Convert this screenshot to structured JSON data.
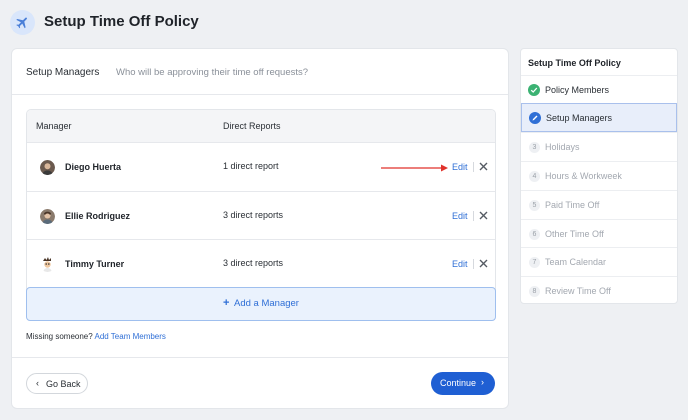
{
  "header": {
    "title": "Setup Time Off Policy",
    "icon": "airplane-icon"
  },
  "card": {
    "title": "Setup Managers",
    "subtitle": "Who will be approving their time off requests?",
    "table": {
      "columns": [
        "Manager",
        "Direct Reports"
      ],
      "rows": [
        {
          "name": "Diego Huerta",
          "reports": "1 direct report",
          "edit_label": "Edit"
        },
        {
          "name": "Ellie Rodriguez",
          "reports": "3 direct reports",
          "edit_label": "Edit"
        },
        {
          "name": "Timmy Turner",
          "reports": "3 direct reports",
          "edit_label": "Edit"
        }
      ]
    },
    "add_manager_label": "Add a Manager",
    "missing_text": "Missing someone?",
    "missing_link": "Add Team Members",
    "back_label": "Go Back",
    "continue_label": "Continue"
  },
  "sidebar": {
    "title": "Setup Time Off Policy",
    "items": [
      {
        "num": "",
        "label": "Policy Members",
        "state": "done"
      },
      {
        "num": "",
        "label": "Setup Managers",
        "state": "active"
      },
      {
        "num": "3",
        "label": "Holidays",
        "state": "future"
      },
      {
        "num": "4",
        "label": "Hours & Workweek",
        "state": "future"
      },
      {
        "num": "5",
        "label": "Paid Time Off",
        "state": "future"
      },
      {
        "num": "6",
        "label": "Other Time Off",
        "state": "future"
      },
      {
        "num": "7",
        "label": "Team Calendar",
        "state": "future"
      },
      {
        "num": "8",
        "label": "Review Time Off",
        "state": "future"
      }
    ]
  },
  "colors": {
    "accent": "#2f6fd6",
    "primary_button": "#1f5fd3",
    "arrow": "#e0322b",
    "success": "#3bb273"
  }
}
